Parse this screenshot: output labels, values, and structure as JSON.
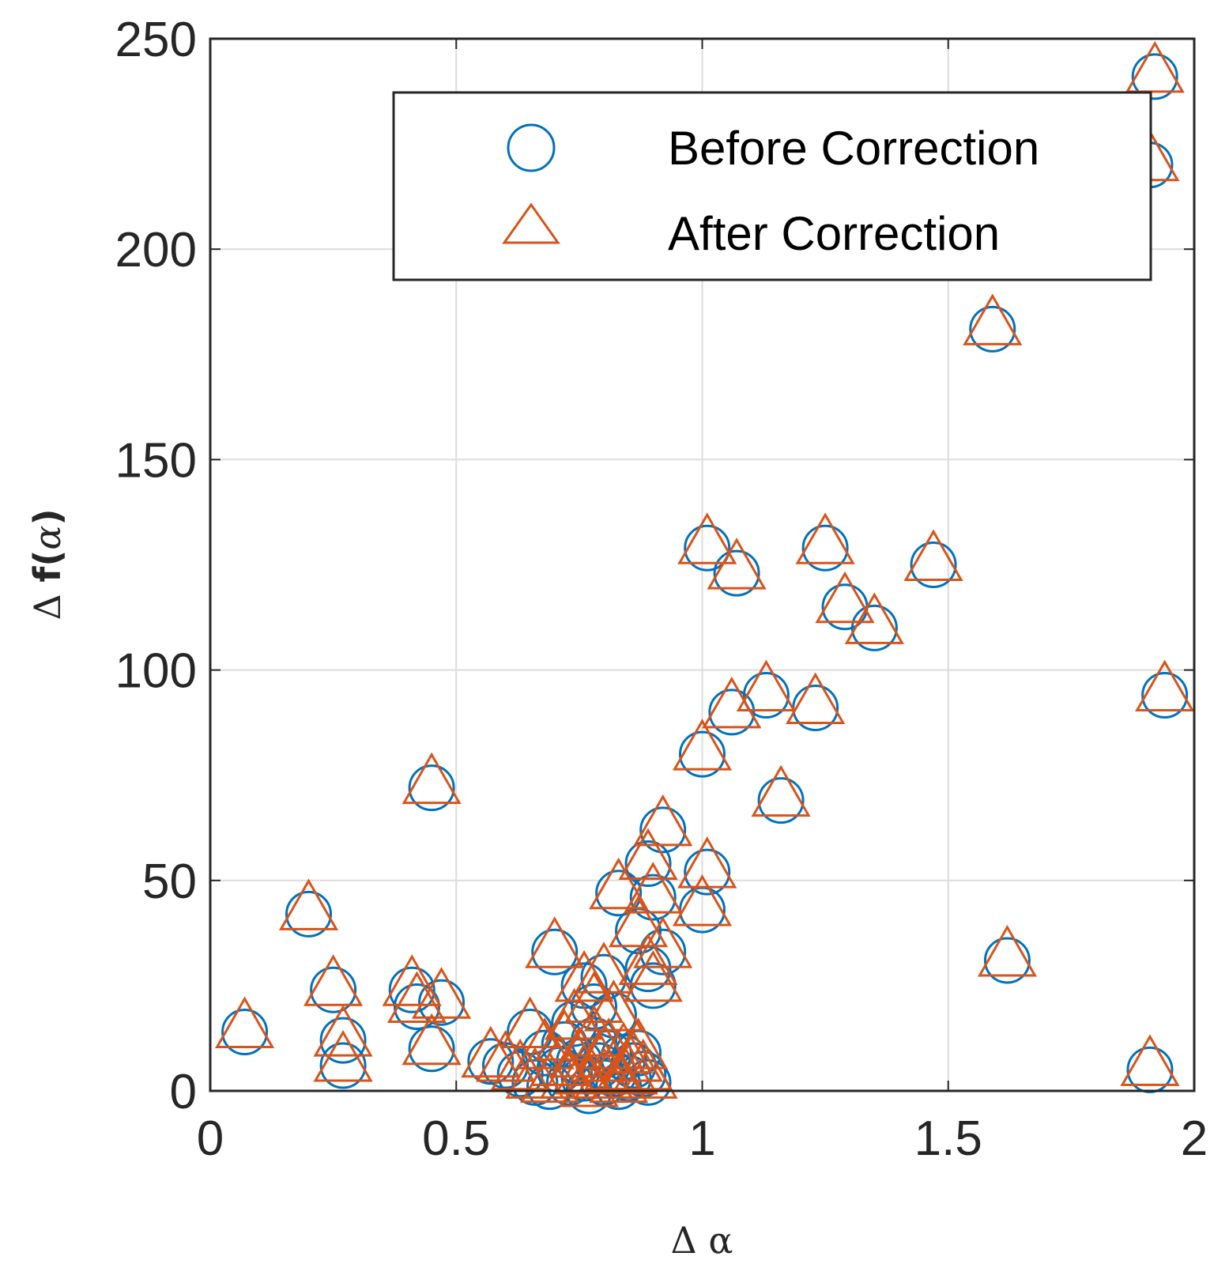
{
  "colors": {
    "before": "#0072BD",
    "after": "#D95319",
    "grid": "#dcdcdc",
    "axis": "#262626"
  },
  "chart_data": {
    "type": "scatter",
    "title": "",
    "xlabel": "Δ α",
    "ylabel": "Δ f(α)",
    "ylabel_prefix": "Δ",
    "ylabel_bold": "f(",
    "ylabel_symbol": "α",
    "ylabel_close": ")",
    "xlim": [
      0,
      2
    ],
    "ylim": [
      0,
      250
    ],
    "xticks": [
      0,
      0.5,
      1,
      1.5,
      2
    ],
    "xtick_labels": [
      "0",
      "0.5",
      "1",
      "1.5",
      "2"
    ],
    "yticks": [
      0,
      50,
      100,
      150,
      200,
      250
    ],
    "ytick_labels": [
      "0",
      "50",
      "100",
      "150",
      "200",
      "250"
    ],
    "grid": true,
    "legend_position": "top-right",
    "series": [
      {
        "name": "Before Correction",
        "marker": "circle",
        "points": [
          [
            1.92,
            241
          ],
          [
            1.91,
            220
          ],
          [
            1.59,
            181
          ],
          [
            1.01,
            129
          ],
          [
            1.25,
            129
          ],
          [
            1.07,
            123
          ],
          [
            1.47,
            125
          ],
          [
            1.29,
            115
          ],
          [
            1.35,
            110
          ],
          [
            1.94,
            94
          ],
          [
            1.13,
            94
          ],
          [
            1.06,
            90
          ],
          [
            1.23,
            91
          ],
          [
            1.0,
            80
          ],
          [
            1.16,
            69
          ],
          [
            0.45,
            72
          ],
          [
            0.92,
            62
          ],
          [
            0.89,
            54
          ],
          [
            0.83,
            47
          ],
          [
            1.01,
            52
          ],
          [
            0.9,
            46
          ],
          [
            0.2,
            42
          ],
          [
            1.0,
            43
          ],
          [
            0.87,
            38
          ],
          [
            0.92,
            33
          ],
          [
            0.89,
            29
          ],
          [
            0.9,
            25
          ],
          [
            0.7,
            33
          ],
          [
            1.62,
            31
          ],
          [
            0.25,
            24
          ],
          [
            0.41,
            24
          ],
          [
            0.47,
            21
          ],
          [
            0.42,
            20
          ],
          [
            0.07,
            14
          ],
          [
            0.27,
            12
          ],
          [
            0.27,
            6
          ],
          [
            0.45,
            10
          ],
          [
            1.91,
            5
          ],
          [
            0.57,
            7
          ],
          [
            0.6,
            6
          ],
          [
            0.63,
            4
          ],
          [
            0.65,
            14
          ],
          [
            0.66,
            2
          ],
          [
            0.68,
            9
          ],
          [
            0.69,
            1
          ],
          [
            0.71,
            5
          ],
          [
            0.72,
            11
          ],
          [
            0.73,
            2
          ],
          [
            0.74,
            16
          ],
          [
            0.75,
            7
          ],
          [
            0.76,
            3
          ],
          [
            0.77,
            0
          ],
          [
            0.78,
            12
          ],
          [
            0.79,
            6
          ],
          [
            0.8,
            2
          ],
          [
            0.81,
            9
          ],
          [
            0.82,
            4
          ],
          [
            0.83,
            1
          ],
          [
            0.84,
            8
          ],
          [
            0.85,
            3
          ],
          [
            0.86,
            6
          ],
          [
            0.87,
            9
          ],
          [
            0.88,
            4
          ],
          [
            0.89,
            2
          ],
          [
            0.76,
            25
          ],
          [
            0.8,
            27
          ],
          [
            0.78,
            20
          ],
          [
            0.82,
            18
          ]
        ]
      },
      {
        "name": "After Correction",
        "marker": "triangle",
        "points": [
          [
            1.92,
            241
          ],
          [
            1.91,
            220
          ],
          [
            1.59,
            181
          ],
          [
            1.01,
            129
          ],
          [
            1.25,
            129
          ],
          [
            1.07,
            123
          ],
          [
            1.47,
            125
          ],
          [
            1.29,
            115
          ],
          [
            1.35,
            110
          ],
          [
            1.94,
            94
          ],
          [
            1.13,
            94
          ],
          [
            1.06,
            90
          ],
          [
            1.23,
            91
          ],
          [
            1.0,
            80
          ],
          [
            1.16,
            69
          ],
          [
            0.45,
            72
          ],
          [
            0.92,
            62
          ],
          [
            0.89,
            54
          ],
          [
            0.83,
            47
          ],
          [
            1.01,
            52
          ],
          [
            0.9,
            46
          ],
          [
            0.2,
            42
          ],
          [
            1.0,
            43
          ],
          [
            0.87,
            38
          ],
          [
            0.92,
            33
          ],
          [
            0.89,
            29
          ],
          [
            0.9,
            25
          ],
          [
            0.7,
            33
          ],
          [
            1.62,
            31
          ],
          [
            0.25,
            24
          ],
          [
            0.41,
            24
          ],
          [
            0.47,
            21
          ],
          [
            0.42,
            20
          ],
          [
            0.07,
            14
          ],
          [
            0.27,
            12
          ],
          [
            0.27,
            6
          ],
          [
            0.45,
            10
          ],
          [
            1.91,
            5
          ],
          [
            0.57,
            7
          ],
          [
            0.6,
            6
          ],
          [
            0.63,
            4
          ],
          [
            0.65,
            14
          ],
          [
            0.66,
            2
          ],
          [
            0.68,
            9
          ],
          [
            0.69,
            1
          ],
          [
            0.71,
            5
          ],
          [
            0.72,
            11
          ],
          [
            0.73,
            2
          ],
          [
            0.74,
            16
          ],
          [
            0.75,
            7
          ],
          [
            0.76,
            3
          ],
          [
            0.77,
            0
          ],
          [
            0.78,
            12
          ],
          [
            0.79,
            6
          ],
          [
            0.8,
            2
          ],
          [
            0.81,
            9
          ],
          [
            0.82,
            4
          ],
          [
            0.83,
            1
          ],
          [
            0.84,
            8
          ],
          [
            0.85,
            3
          ],
          [
            0.86,
            6
          ],
          [
            0.87,
            9
          ],
          [
            0.88,
            4
          ],
          [
            0.89,
            2
          ],
          [
            0.76,
            25
          ],
          [
            0.8,
            27
          ],
          [
            0.78,
            20
          ],
          [
            0.82,
            18
          ]
        ]
      }
    ]
  }
}
